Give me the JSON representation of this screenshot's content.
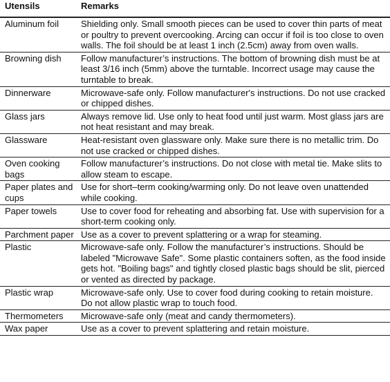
{
  "table": {
    "headers": [
      "Utensils",
      "Remarks"
    ],
    "rows": [
      {
        "utensil": "Aluminum foil",
        "remarks": "Shielding only. Small smooth pieces can be used to cover thin parts of meat or poultry to prevent overcooking. Arcing can occur if foil is too close to oven walls. The foil should be at least 1 inch (2.5cm) away from oven walls."
      },
      {
        "utensil": "Browning dish",
        "remarks": "Follow manufacturer’s instructions. The bottom of browning dish must be at least 3/16 inch (5mm) above the turntable. Incorrect usage may cause the turntable to break."
      },
      {
        "utensil": "Dinnerware",
        "remarks": "Microwave-safe only. Follow manufacturer's instructions. Do not use cracked or chipped dishes."
      },
      {
        "utensil": "Glass jars",
        "remarks": "Always remove lid. Use only to heat food until just warm. Most glass jars are not heat resistant and may break."
      },
      {
        "utensil": "Glassware",
        "remarks": "Heat-resistant oven glassware only. Make sure there is no metallic trim. Do not use cracked or chipped dishes."
      },
      {
        "utensil": "Oven cooking bags",
        "remarks": "Follow manufacturer’s instructions. Do not close with metal tie. Make slits to allow steam to escape."
      },
      {
        "utensil": "Paper plates and cups",
        "remarks": "Use for short–term cooking/warming only. Do not leave oven unattended while cooking."
      },
      {
        "utensil": "Paper towels",
        "remarks": "Use to cover food for reheating and absorbing fat. Use with supervision for a short-term cooking only."
      },
      {
        "utensil": "Parchment paper",
        "remarks": "Use as a cover to prevent splattering or a wrap for steaming."
      },
      {
        "utensil": "Plastic",
        "remarks": "Microwave-safe only. Follow the manufacturer’s instructions. Should be labeled \"Microwave Safe\". Some plastic containers soften, as the food inside gets hot. \"Boiling bags\" and tightly closed plastic bags should be slit, pierced or vented as directed by package."
      },
      {
        "utensil": "Plastic wrap",
        "remarks": "Microwave-safe only. Use to cover food during cooking to retain moisture. Do not allow plastic wrap to touch food."
      },
      {
        "utensil": "Thermometers",
        "remarks": "Microwave-safe only (meat and candy thermometers)."
      },
      {
        "utensil": "Wax paper",
        "remarks": "Use as a cover to prevent splattering and retain moisture."
      }
    ]
  }
}
